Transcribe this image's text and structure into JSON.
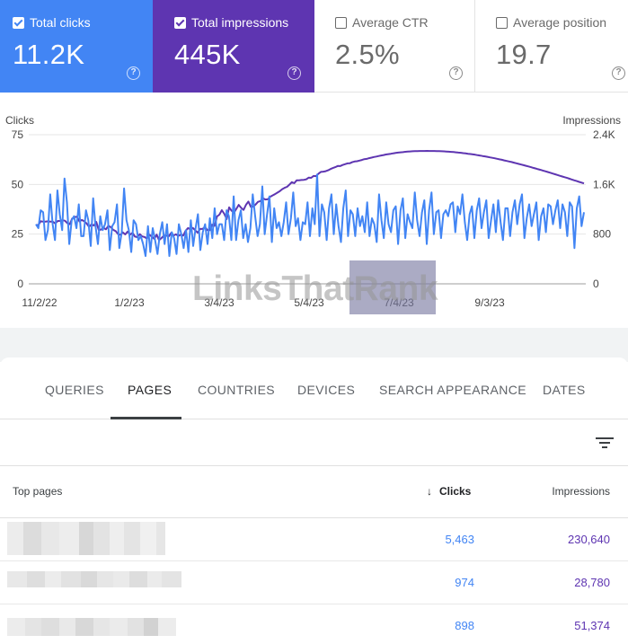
{
  "metrics": {
    "total_clicks": {
      "label": "Total clicks",
      "value": "11.2K",
      "checked": true,
      "color": "#4285f4"
    },
    "total_impressions": {
      "label": "Total impressions",
      "value": "445K",
      "checked": true,
      "color": "#5e35b1"
    },
    "average_ctr": {
      "label": "Average CTR",
      "value": "2.5%",
      "checked": false
    },
    "average_position": {
      "label": "Average position",
      "value": "19.7",
      "checked": false
    },
    "help_glyph": "?"
  },
  "chart_data": {
    "type": "line",
    "left_axis_title": "Clicks",
    "right_axis_title": "Impressions",
    "left_ticks": [
      "75",
      "50",
      "25",
      "0"
    ],
    "right_ticks": [
      "2.4K",
      "1.6K",
      "800",
      "0"
    ],
    "x_ticks": [
      "11/2/22",
      "1/2/23",
      "3/4/23",
      "5/4/23",
      "7/4/23",
      "9/3/23"
    ],
    "left_range": [
      0,
      75
    ],
    "right_range": [
      0,
      2400
    ],
    "grid": true,
    "series": [
      {
        "name": "Clicks",
        "axis": "left",
        "color": "#4285f4",
        "values": [
          30,
          28,
          37,
          36,
          22,
          27,
          45,
          30,
          22,
          47,
          35,
          27,
          53,
          41,
          20,
          32,
          34,
          28,
          40,
          24,
          24,
          37,
          32,
          19,
          43,
          29,
          20,
          34,
          27,
          30,
          37,
          17,
          29,
          31,
          40,
          18,
          26,
          48,
          32,
          27,
          16,
          32,
          30,
          22,
          24,
          20,
          14,
          29,
          16,
          28,
          22,
          15,
          25,
          31,
          20,
          30,
          14,
          26,
          23,
          15,
          30,
          25,
          18,
          27,
          16,
          32,
          19,
          28,
          35,
          17,
          26,
          30,
          20,
          33,
          23,
          38,
          25,
          30,
          30,
          22,
          37,
          34,
          22,
          44,
          22,
          32,
          37,
          23,
          30,
          21,
          28,
          45,
          34,
          24,
          30,
          49,
          25,
          35,
          44,
          21,
          38,
          28,
          31,
          24,
          31,
          41,
          25,
          33,
          46,
          29,
          33,
          22,
          31,
          30,
          41,
          24,
          38,
          30,
          55,
          24,
          40,
          36,
          22,
          38,
          45,
          25,
          40,
          29,
          21,
          38,
          47,
          24,
          37,
          35,
          24,
          38,
          29,
          34,
          26,
          41,
          24,
          33,
          30,
          21,
          45,
          32,
          23,
          41,
          30,
          26,
          37,
          39,
          20,
          37,
          43,
          23,
          35,
          31,
          28,
          46,
          32,
          24,
          36,
          42,
          20,
          37,
          46,
          25,
          36,
          37,
          23,
          35,
          37,
          34,
          40,
          41,
          26,
          39,
          35,
          45,
          31,
          22,
          35,
          39,
          23,
          37,
          43,
          28,
          36,
          42,
          23,
          32,
          40,
          26,
          42,
          31,
          22,
          38,
          38,
          24,
          36,
          42,
          30,
          40,
          45,
          23,
          33,
          40,
          29,
          35,
          41,
          22,
          34,
          38,
          26,
          40,
          39,
          30,
          37,
          42,
          28,
          40,
          36,
          24,
          41,
          39,
          18,
          38,
          44,
          29,
          36
        ]
      },
      {
        "name": "Impressions",
        "axis": "right",
        "color": "#5e35b1",
        "values": [
          940,
          948,
          1008,
          1000,
          1000,
          1006,
          1000,
          1001,
          972,
          1010,
          1013,
          1023,
          1017,
          978,
          960,
          1049,
          1074,
          1081,
          1005,
          1028,
          1006,
          971,
          916,
          957,
          939,
          996,
          864,
          875,
          900,
          877,
          934,
          913,
          869,
          848,
          801,
          789,
          829,
          795,
          842,
          792,
          821,
          761,
          752,
          800,
          764,
          753,
          728,
          791,
          759,
          724,
          793,
          702,
          736,
          776,
          776,
          765,
          819,
          778,
          796,
          771,
          792,
          777,
          855,
          898,
          877,
          900,
          860,
          823,
          884,
          884,
          914,
          864,
          865,
          951,
          934,
          1085,
          1113,
          1186,
          1127,
          1041,
          1230,
          1179,
          1143,
          1206,
          1271,
          1223,
          1190,
          1272,
          1324,
          1238,
          1243,
          1277,
          1320,
          1331,
          1378,
          1357,
          1360,
          1401,
          1422,
          1443,
          1467,
          1490,
          1524,
          1546,
          1561,
          1597,
          1637,
          1619,
          1666,
          1665,
          1672,
          1674,
          1683,
          1710,
          1706,
          1736,
          1733,
          1773,
          1801,
          1806,
          1813,
          1827,
          1848,
          1864,
          1878,
          1897,
          1896,
          1913,
          1926,
          1939,
          1940,
          1957,
          1969,
          1974,
          1983,
          1994,
          2007,
          2011,
          2022,
          2031,
          2041,
          2048,
          2058,
          2066,
          2073,
          2082,
          2087,
          2094,
          2101,
          2106,
          2112,
          2116,
          2120,
          2125,
          2128,
          2131,
          2134,
          2136,
          2137,
          2138,
          2139,
          2139,
          2140,
          2139,
          2139,
          2138,
          2137,
          2136,
          2134,
          2132,
          2130,
          2127,
          2124,
          2121,
          2117,
          2113,
          2109,
          2104,
          2100,
          2094,
          2089,
          2083,
          2077,
          2071,
          2064,
          2058,
          2051,
          2044,
          2036,
          2028,
          2021,
          2013,
          2004,
          1996,
          1987,
          1978,
          1969,
          1960,
          1950,
          1940,
          1930,
          1920,
          1910,
          1900,
          1889,
          1878,
          1867,
          1856,
          1845,
          1834,
          1823,
          1811,
          1800,
          1788,
          1776,
          1764,
          1752,
          1740,
          1728,
          1716,
          1704,
          1691,
          1679,
          1666,
          1654,
          1641,
          1629,
          1616
        ]
      }
    ]
  },
  "watermark": {
    "text": "LinksThatRank"
  },
  "tabs": [
    "QUERIES",
    "PAGES",
    "COUNTRIES",
    "DEVICES",
    "SEARCH APPEARANCE",
    "DATES"
  ],
  "active_tab": "PAGES",
  "table": {
    "headers": {
      "pages": "Top pages",
      "clicks": "Clicks",
      "impressions": "Impressions",
      "sort_arrow": "↓"
    },
    "rows": [
      {
        "clicks": "5,463",
        "impressions": "230,640"
      },
      {
        "clicks": "974",
        "impressions": "28,780"
      },
      {
        "clicks": "898",
        "impressions": "51,374"
      }
    ]
  }
}
